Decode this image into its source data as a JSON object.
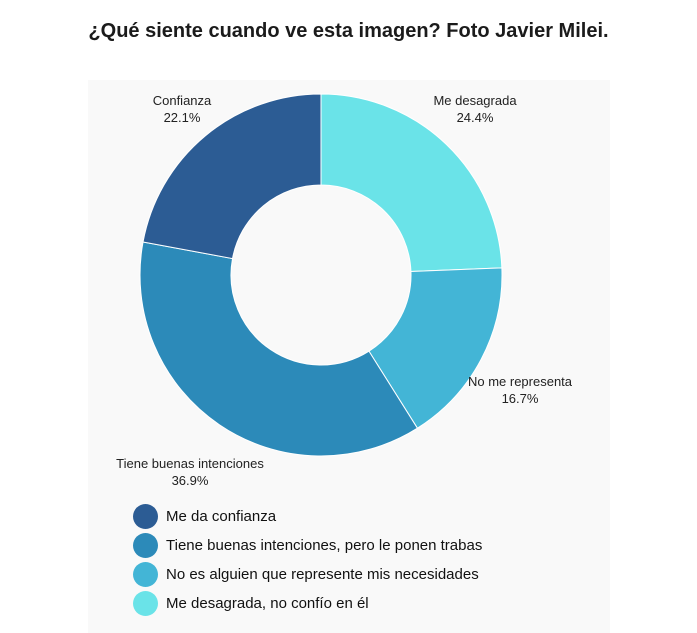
{
  "title": "¿Qué siente cuando ve esta imagen? Foto Javier Milei.",
  "chart_data": {
    "type": "pie",
    "title": "¿Qué siente cuando ve esta imagen? Foto Javier Milei.",
    "donut": true,
    "start": "top",
    "direction": "clockwise",
    "slices": [
      {
        "key": "desagrada",
        "label": "Me desagrada",
        "value": 24.4,
        "value_label": "24.4%",
        "legend": "Me desagrada, no confío en él",
        "color": "#6ae3e8"
      },
      {
        "key": "no_representa",
        "label": "No me representa",
        "value": 16.7,
        "value_label": "16.7%",
        "legend": "No es alguien que represente mis necesidades",
        "color": "#43b5d6"
      },
      {
        "key": "buenas_intenciones",
        "label": "Tiene buenas intenciones",
        "value": 36.9,
        "value_label": "36.9%",
        "legend": "Tiene buenas intenciones, pero le ponen trabas",
        "color": "#2c8ab9"
      },
      {
        "key": "confianza",
        "label": "Confianza",
        "value": 22.1,
        "value_label": "22.1%",
        "legend": "Me da confianza",
        "color": "#2c5c94"
      }
    ],
    "legend_order": [
      "confianza",
      "buenas_intenciones",
      "no_representa",
      "desagrada"
    ],
    "legend_position": "bottom"
  }
}
